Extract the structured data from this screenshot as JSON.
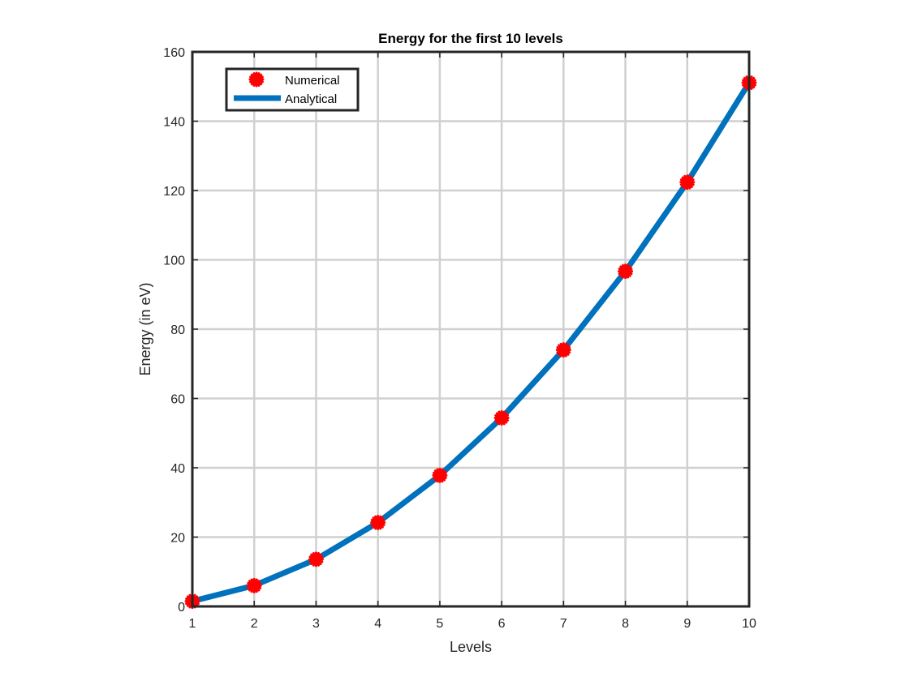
{
  "chart_data": {
    "type": "line",
    "title": "Energy for the first 10 levels",
    "xlabel": "Levels",
    "ylabel": "Energy (in eV)",
    "xlim": [
      1,
      10
    ],
    "ylim": [
      0,
      160
    ],
    "xticks": [
      1,
      2,
      3,
      4,
      5,
      6,
      7,
      8,
      9,
      10
    ],
    "yticks": [
      0,
      20,
      40,
      60,
      80,
      100,
      120,
      140,
      160
    ],
    "grid": true,
    "legend_position": "top-left",
    "series": [
      {
        "name": "Numerical",
        "style": "markers",
        "marker": "asterisk",
        "color": "#ff0000",
        "x": [
          1,
          2,
          3,
          4,
          5,
          6,
          7,
          8,
          9,
          10
        ],
        "y": [
          1.5,
          6.0,
          13.6,
          24.2,
          37.8,
          54.4,
          74.0,
          96.7,
          122.4,
          151.1
        ]
      },
      {
        "name": "Analytical",
        "style": "line",
        "color": "#0072bd",
        "x": [
          1,
          2,
          3,
          4,
          5,
          6,
          7,
          8,
          9,
          10
        ],
        "y": [
          1.51,
          6.04,
          13.6,
          24.2,
          37.8,
          54.4,
          74.0,
          96.7,
          122.4,
          151.1
        ]
      }
    ]
  }
}
